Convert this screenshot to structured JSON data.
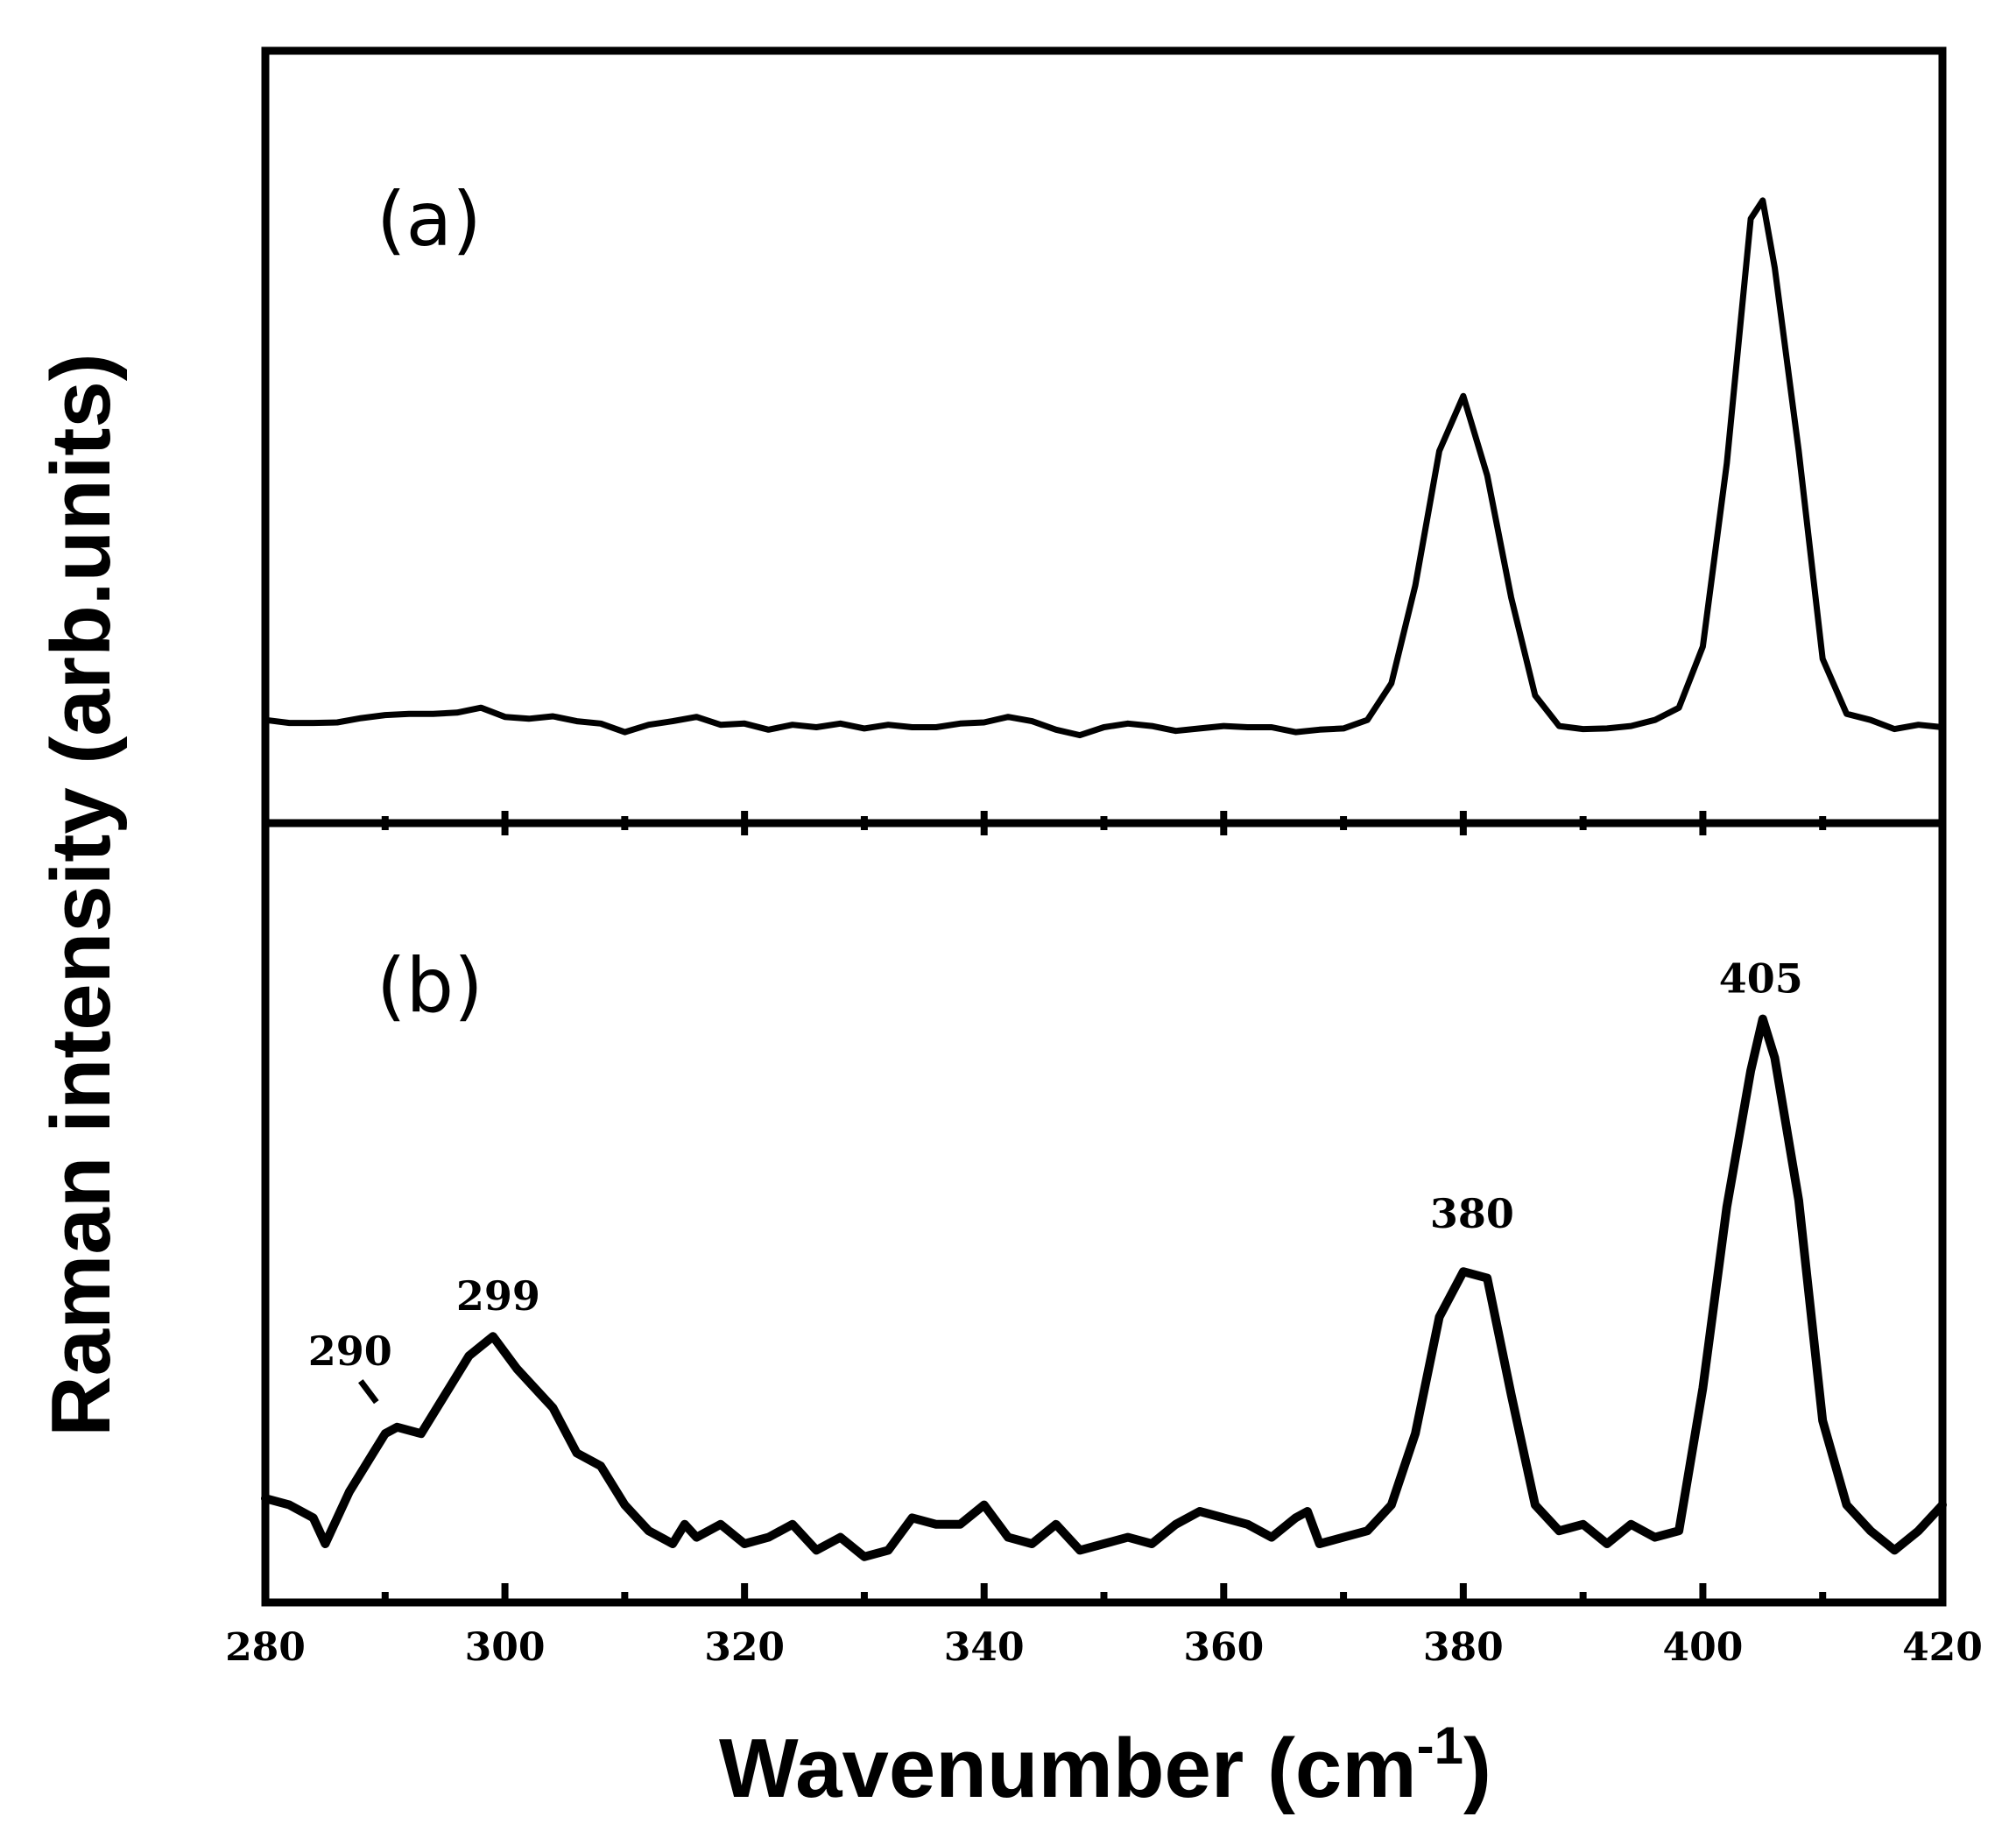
{
  "chart_data": {
    "type": "line",
    "xlabel": "Wavenumber (cm",
    "xlabel_sup": "-1",
    "xlabel_close": ")",
    "ylabel": "Raman intensity (arb.units)",
    "xlim": [
      280,
      420
    ],
    "xticks": [
      280,
      300,
      320,
      340,
      360,
      380,
      400,
      420
    ],
    "minor_ticks": [
      290,
      310,
      330,
      350,
      370,
      390,
      410
    ],
    "grid": false,
    "panels": [
      {
        "label": "(a)",
        "ylim": [
          0,
          100
        ],
        "points": [
          [
            280,
            8
          ],
          [
            282,
            7.5
          ],
          [
            284,
            7.5
          ],
          [
            286,
            7.6
          ],
          [
            288,
            8.3
          ],
          [
            290,
            8.8
          ],
          [
            292,
            9
          ],
          [
            294,
            9
          ],
          [
            296,
            9.2
          ],
          [
            298,
            10
          ],
          [
            300,
            8.5
          ],
          [
            302,
            8.2
          ],
          [
            304,
            8.6
          ],
          [
            306,
            7.8
          ],
          [
            308,
            7.4
          ],
          [
            310,
            6
          ],
          [
            312,
            7.2
          ],
          [
            314,
            7.8
          ],
          [
            316,
            8.5
          ],
          [
            318,
            7.2
          ],
          [
            320,
            7.4
          ],
          [
            322,
            6.4
          ],
          [
            324,
            7.2
          ],
          [
            326,
            6.8
          ],
          [
            328,
            7.4
          ],
          [
            330,
            6.6
          ],
          [
            332,
            7.2
          ],
          [
            334,
            6.8
          ],
          [
            336,
            6.8
          ],
          [
            338,
            7.4
          ],
          [
            340,
            7.6
          ],
          [
            342,
            8.5
          ],
          [
            344,
            7.8
          ],
          [
            346,
            6.4
          ],
          [
            348,
            5.5
          ],
          [
            350,
            6.8
          ],
          [
            352,
            7.4
          ],
          [
            354,
            7
          ],
          [
            356,
            6.2
          ],
          [
            358,
            6.6
          ],
          [
            360,
            7
          ],
          [
            362,
            6.8
          ],
          [
            364,
            6.8
          ],
          [
            366,
            6
          ],
          [
            368,
            6.4
          ],
          [
            370,
            6.6
          ],
          [
            372,
            8
          ],
          [
            374,
            14
          ],
          [
            376,
            30
          ],
          [
            378,
            52
          ],
          [
            380,
            61
          ],
          [
            382,
            48
          ],
          [
            384,
            28
          ],
          [
            386,
            12
          ],
          [
            388,
            7
          ],
          [
            390,
            6.5
          ],
          [
            392,
            6.6
          ],
          [
            394,
            7
          ],
          [
            396,
            8
          ],
          [
            398,
            10
          ],
          [
            400,
            20
          ],
          [
            402,
            50
          ],
          [
            404,
            90
          ],
          [
            405,
            93
          ],
          [
            406,
            82
          ],
          [
            408,
            52
          ],
          [
            410,
            18
          ],
          [
            412,
            9
          ],
          [
            414,
            8
          ],
          [
            416,
            6.5
          ],
          [
            418,
            7.2
          ],
          [
            420,
            6.8
          ]
        ]
      },
      {
        "label": "(b)",
        "ylim": [
          0,
          100
        ],
        "points": [
          [
            280,
            12
          ],
          [
            282,
            11
          ],
          [
            284,
            9
          ],
          [
            285,
            5
          ],
          [
            287,
            13
          ],
          [
            289,
            19
          ],
          [
            290,
            22
          ],
          [
            291,
            23
          ],
          [
            293,
            22
          ],
          [
            295,
            28
          ],
          [
            297,
            34
          ],
          [
            299,
            37
          ],
          [
            301,
            32
          ],
          [
            303,
            28
          ],
          [
            304,
            26
          ],
          [
            306,
            19
          ],
          [
            308,
            17
          ],
          [
            310,
            11
          ],
          [
            312,
            7
          ],
          [
            314,
            5
          ],
          [
            315,
            8
          ],
          [
            316,
            6
          ],
          [
            318,
            8
          ],
          [
            320,
            5
          ],
          [
            322,
            6
          ],
          [
            324,
            8
          ],
          [
            326,
            4
          ],
          [
            328,
            6
          ],
          [
            330,
            3
          ],
          [
            332,
            4
          ],
          [
            334,
            9
          ],
          [
            336,
            8
          ],
          [
            338,
            8
          ],
          [
            340,
            11
          ],
          [
            342,
            6
          ],
          [
            344,
            5
          ],
          [
            346,
            8
          ],
          [
            348,
            4
          ],
          [
            350,
            5
          ],
          [
            352,
            6
          ],
          [
            354,
            5
          ],
          [
            356,
            8
          ],
          [
            358,
            10
          ],
          [
            360,
            9
          ],
          [
            362,
            8
          ],
          [
            364,
            6
          ],
          [
            366,
            9
          ],
          [
            367,
            10
          ],
          [
            368,
            5
          ],
          [
            370,
            6
          ],
          [
            372,
            7
          ],
          [
            374,
            11
          ],
          [
            376,
            22
          ],
          [
            378,
            40
          ],
          [
            380,
            47
          ],
          [
            382,
            46
          ],
          [
            384,
            28
          ],
          [
            386,
            11
          ],
          [
            388,
            7
          ],
          [
            390,
            8
          ],
          [
            392,
            5
          ],
          [
            394,
            8
          ],
          [
            396,
            6
          ],
          [
            398,
            7
          ],
          [
            400,
            29
          ],
          [
            402,
            57
          ],
          [
            404,
            78
          ],
          [
            405,
            86
          ],
          [
            406,
            80
          ],
          [
            408,
            58
          ],
          [
            410,
            24
          ],
          [
            412,
            11
          ],
          [
            414,
            7
          ],
          [
            416,
            4
          ],
          [
            418,
            7
          ],
          [
            420,
            11
          ]
        ],
        "annotations": [
          {
            "x": 290,
            "text": "290"
          },
          {
            "x": 299,
            "text": "299"
          },
          {
            "x": 380,
            "text": "380"
          },
          {
            "x": 405,
            "text": "405"
          }
        ]
      }
    ]
  }
}
